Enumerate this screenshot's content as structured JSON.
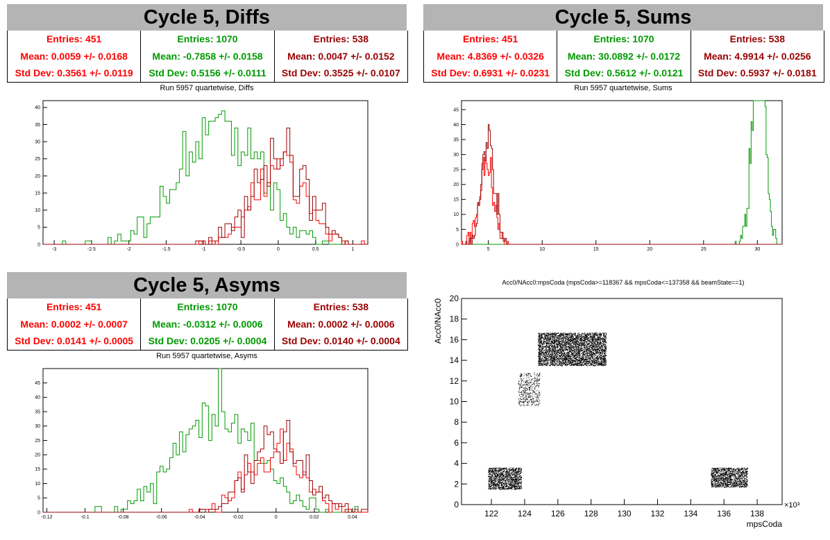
{
  "colors": {
    "red": "#ff0000",
    "green": "#009900",
    "dark_red": "#990000",
    "banner": "#b4b4b4"
  },
  "panels": {
    "diffs": {
      "banner": "Cycle 5, Diffs",
      "title": "Run 5957 quartetwise, Diffs",
      "stats": [
        {
          "entries": "Entries: 451",
          "mean": "Mean: 0.0059 +/- 0.0168",
          "std": "Std Dev: 0.3561 +/- 0.0119",
          "color": "red"
        },
        {
          "entries": "Entries: 1070",
          "mean": "Mean: -0.7858 +/- 0.0158",
          "std": "Std Dev: 0.5156 +/- 0.0111",
          "color": "green"
        },
        {
          "entries": "Entries: 538",
          "mean": "Mean: 0.0047 +/- 0.0152",
          "std": "Std Dev: 0.3525 +/- 0.0107",
          "color": "dark"
        }
      ]
    },
    "sums": {
      "banner": "Cycle 5, Sums",
      "title": "Run 5957 quartetwise, Sums",
      "stats": [
        {
          "entries": "Entries: 451",
          "mean": "Mean: 4.8369 +/- 0.0326",
          "std": "Std Dev: 0.6931 +/- 0.0231",
          "color": "red"
        },
        {
          "entries": "Entries: 1070",
          "mean": "Mean: 30.0892 +/- 0.0172",
          "std": "Std Dev: 0.5612 +/- 0.0121",
          "color": "green"
        },
        {
          "entries": "Entries: 538",
          "mean": "Mean: 4.9914 +/- 0.0256",
          "std": "Std Dev: 0.5937 +/- 0.0181",
          "color": "dark"
        }
      ]
    },
    "asyms": {
      "banner": "Cycle 5, Asyms",
      "title": "Run 5957 quartetwise, Asyms",
      "stats": [
        {
          "entries": "Entries: 451",
          "mean": "Mean: 0.0002 +/- 0.0007",
          "std": "Std Dev: 0.0141 +/- 0.0005",
          "color": "red"
        },
        {
          "entries": "Entries: 1070",
          "mean": "Mean: -0.0312 +/- 0.0006",
          "std": "Std Dev: 0.0205 +/- 0.0004",
          "color": "green"
        },
        {
          "entries": "Entries: 538",
          "mean": "Mean: 0.0002 +/- 0.0006",
          "std": "Std Dev: 0.0140 +/- 0.0004",
          "color": "dark"
        }
      ]
    },
    "scatter": {
      "title": "Acc0/NAcc0:mpsCoda (mpsCoda>=118367 && mpsCoda<=137358 && beamState==1)"
    }
  },
  "chart_data": [
    {
      "type": "histogram",
      "id": "diffs",
      "title": "Run 5957 quartetwise, Diffs",
      "xlim": [
        -3.15,
        1.2
      ],
      "ylim": [
        0,
        42
      ],
      "xticks": [
        -3,
        -2.5,
        -2,
        -1.5,
        -1,
        -0.5,
        0,
        0.5,
        1
      ],
      "xtick_labels": [
        "-3",
        "-2.5",
        "-2",
        "-1.5",
        "-1",
        "-0.5",
        "0",
        "0.5",
        "1"
      ],
      "yticks": [
        0,
        5,
        10,
        15,
        20,
        25,
        30,
        35,
        40
      ],
      "series": [
        {
          "color": "green",
          "entries": 1070,
          "mean": -0.7858,
          "std": 0.5156
        },
        {
          "color": "red",
          "entries": 451,
          "mean": 0.0059,
          "std": 0.3561
        },
        {
          "color": "dark",
          "entries": 538,
          "mean": 0.0047,
          "std": 0.3525
        }
      ]
    },
    {
      "type": "histogram",
      "id": "sums",
      "title": "Run 5957 quartetwise, Sums",
      "xlim": [
        2.5,
        32.3
      ],
      "ylim": [
        0,
        48
      ],
      "xticks": [
        5,
        10,
        15,
        20,
        25,
        30
      ],
      "xtick_labels": [
        "5",
        "10",
        "15",
        "20",
        "25",
        "30"
      ],
      "yticks": [
        0,
        5,
        10,
        15,
        20,
        25,
        30,
        35,
        40,
        45
      ],
      "series": [
        {
          "color": "green",
          "entries": 1070,
          "mean": 30.0892,
          "std": 0.5612
        },
        {
          "color": "red",
          "entries": 451,
          "mean": 4.8369,
          "std": 0.6931
        },
        {
          "color": "dark",
          "entries": 538,
          "mean": 4.9914,
          "std": 0.5937
        }
      ]
    },
    {
      "type": "histogram",
      "id": "asyms",
      "title": "Run 5957 quartetwise, Asyms",
      "xlim": [
        -0.122,
        0.048
      ],
      "ylim": [
        0,
        50
      ],
      "xticks": [
        -0.12,
        -0.1,
        -0.08,
        -0.06,
        -0.04,
        -0.02,
        0,
        0.02,
        0.04
      ],
      "xtick_labels": [
        "-0.12",
        "-0.1",
        "-0.08",
        "-0.06",
        "-0.04",
        "-0.02",
        "0",
        "0.02",
        "0.04"
      ],
      "yticks": [
        0,
        5,
        10,
        15,
        20,
        25,
        30,
        35,
        40,
        45
      ],
      "series": [
        {
          "color": "green",
          "entries": 1070,
          "mean": -0.0312,
          "std": 0.0205
        },
        {
          "color": "red",
          "entries": 451,
          "mean": 0.0002,
          "std": 0.0141
        },
        {
          "color": "dark",
          "entries": 538,
          "mean": 0.0002,
          "std": 0.014
        }
      ]
    },
    {
      "type": "scatter",
      "id": "acc",
      "title": "Acc0/NAcc0:mpsCoda (mpsCoda>=118367 && mpsCoda<=137358 && beamState==1)",
      "xlabel": "mpsCoda",
      "ylabel": "Acc0/NAcc0",
      "x_exponent": "×10³",
      "xlim": [
        120.2,
        139.5
      ],
      "ylim": [
        0,
        20
      ],
      "xticks": [
        122,
        124,
        126,
        128,
        130,
        132,
        134,
        136,
        138
      ],
      "yticks": [
        0,
        2,
        4,
        6,
        8,
        10,
        12,
        14,
        16,
        18,
        20
      ],
      "clusters": [
        {
          "x": [
            121.8,
            123.8
          ],
          "y": [
            1.5,
            3.6
          ],
          "n": 1400
        },
        {
          "x": [
            123.6,
            124.9
          ],
          "y": [
            9.6,
            12.8
          ],
          "n": 400
        },
        {
          "x": [
            124.8,
            128.9
          ],
          "y": [
            13.5,
            16.7
          ],
          "n": 4200
        },
        {
          "x": [
            135.2,
            137.4
          ],
          "y": [
            1.7,
            3.6
          ],
          "n": 1300
        }
      ]
    }
  ]
}
